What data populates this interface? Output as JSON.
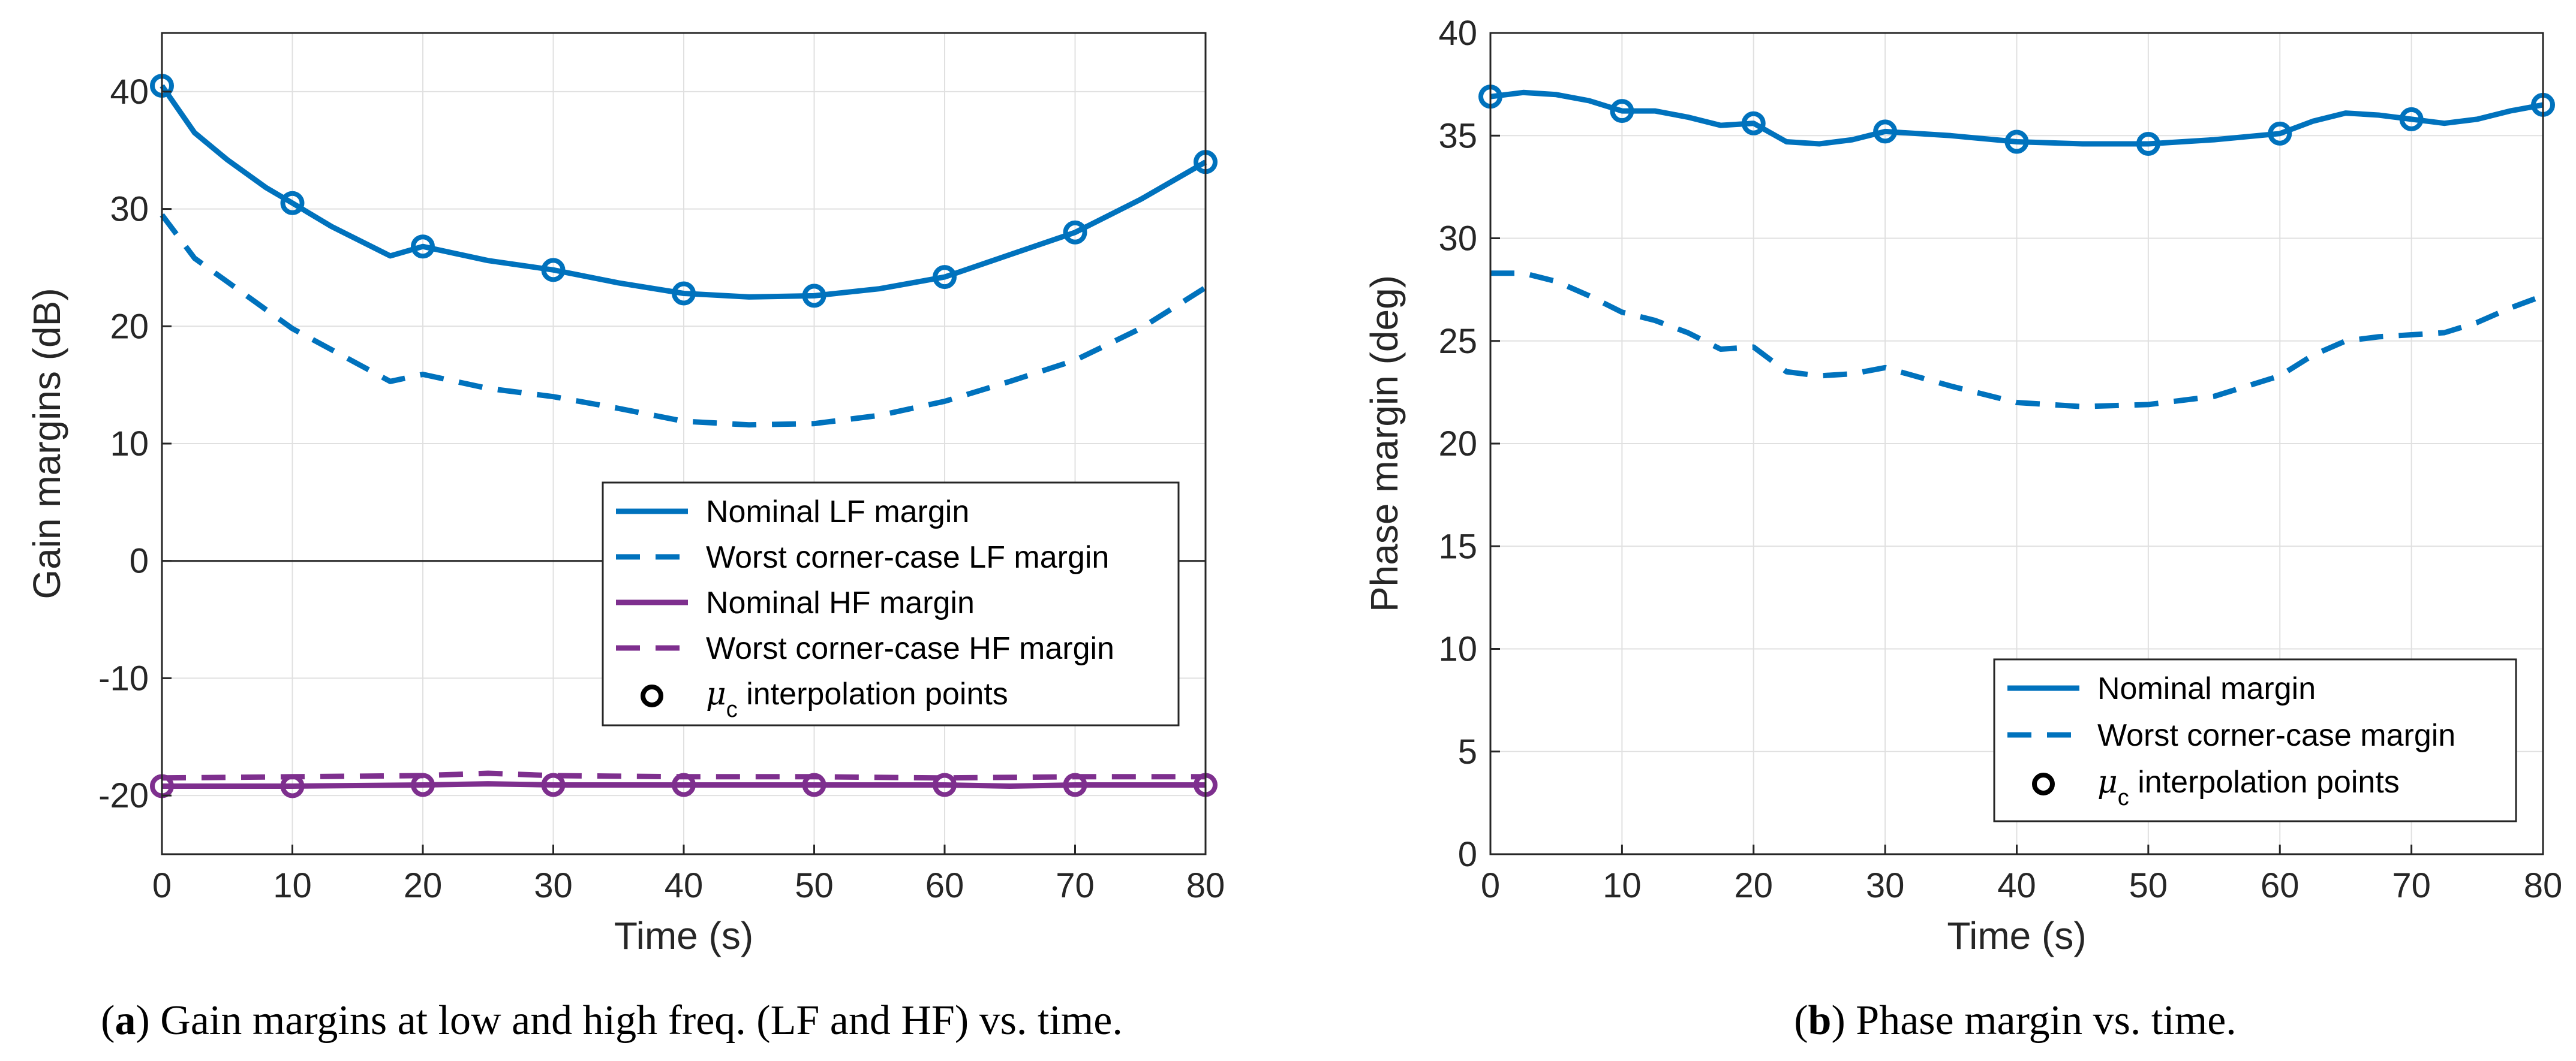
{
  "chart_data": [
    {
      "type": "line",
      "panel": "a",
      "xlabel": "Time (s)",
      "ylabel": "Gain margins (dB)",
      "xlim": [
        0,
        80
      ],
      "ylim": [
        -25,
        45
      ],
      "xticks": [
        0,
        10,
        20,
        30,
        40,
        50,
        60,
        70,
        80
      ],
      "yticks": [
        -20,
        -10,
        0,
        10,
        20,
        30,
        40
      ],
      "grid": true,
      "zero_line": true,
      "legend_position": "center-right",
      "series": [
        {
          "name": "Nominal LF margin",
          "style": "solid",
          "color": "#0072BD",
          "x": [
            0,
            2.5,
            5,
            8,
            10,
            13,
            17.5,
            20,
            25,
            30,
            35,
            40,
            45,
            50,
            55,
            60,
            65,
            70,
            75,
            80
          ],
          "y": [
            40.5,
            36.5,
            34.2,
            31.8,
            30.5,
            28.5,
            26,
            26.8,
            25.6,
            24.8,
            23.7,
            22.8,
            22.5,
            22.6,
            23.2,
            24.2,
            26.1,
            28.0,
            30.8,
            34.0
          ]
        },
        {
          "name": "Worst corner-case LF margin",
          "style": "dashed",
          "color": "#0072BD",
          "x": [
            0,
            2.5,
            5,
            10,
            15,
            17.5,
            20,
            25,
            30,
            35,
            40,
            45,
            50,
            55,
            60,
            65,
            70,
            75,
            80
          ],
          "y": [
            29.5,
            25.8,
            23.8,
            19.8,
            16.8,
            15.3,
            15.9,
            14.7,
            14.0,
            13.0,
            11.9,
            11.6,
            11.7,
            12.4,
            13.6,
            15.3,
            17.1,
            19.8,
            23.3
          ]
        },
        {
          "name": "Nominal HF margin",
          "style": "solid",
          "color": "#7E2F8E",
          "x": [
            0,
            10,
            20,
            25,
            30,
            40,
            50,
            60,
            65,
            70,
            80
          ],
          "y": [
            -19.2,
            -19.2,
            -19.1,
            -19.0,
            -19.1,
            -19.1,
            -19.1,
            -19.1,
            -19.2,
            -19.1,
            -19.1
          ]
        },
        {
          "name": "Worst corner-case HF margin",
          "style": "dashed",
          "color": "#7E2F8E",
          "x": [
            0,
            10,
            20,
            25,
            30,
            40,
            50,
            60,
            70,
            80
          ],
          "y": [
            -18.5,
            -18.4,
            -18.3,
            -18.1,
            -18.3,
            -18.4,
            -18.4,
            -18.5,
            -18.4,
            -18.4
          ]
        }
      ],
      "markers": {
        "name": "μc interpolation points",
        "series": [
          {
            "x": [
              0,
              10,
              20,
              30,
              40,
              50,
              60,
              70,
              80
            ],
            "y": [
              40.5,
              30.5,
              26.8,
              24.8,
              22.8,
              22.6,
              24.2,
              28.0,
              34.0
            ],
            "color": "#0072BD"
          },
          {
            "x": [
              0,
              10,
              20,
              30,
              40,
              50,
              60,
              70,
              80
            ],
            "y": [
              -19.2,
              -19.2,
              -19.1,
              -19.1,
              -19.1,
              -19.1,
              -19.1,
              -19.1,
              -19.1
            ],
            "color": "#7E2F8E"
          }
        ]
      },
      "legend": [
        {
          "label": "Nominal LF margin",
          "kind": "solid",
          "color": "#0072BD"
        },
        {
          "label": "Worst corner-case LF margin",
          "kind": "dashed",
          "color": "#0072BD"
        },
        {
          "label": "Nominal HF margin",
          "kind": "solid",
          "color": "#7E2F8E"
        },
        {
          "label": "Worst corner-case HF margin",
          "kind": "dashed",
          "color": "#7E2F8E"
        },
        {
          "label_prefix": "μ",
          "label_sub": "c",
          "label_suffix": " interpolation points",
          "kind": "marker",
          "color": "#000000"
        }
      ],
      "caption": {
        "letter": "a",
        "text": " Gain margins at low and high freq. (LF and HF) vs. time."
      }
    },
    {
      "type": "line",
      "panel": "b",
      "xlabel": "Time (s)",
      "ylabel": "Phase margin (deg)",
      "xlim": [
        0,
        80
      ],
      "ylim": [
        0,
        40
      ],
      "xticks": [
        0,
        10,
        20,
        30,
        40,
        50,
        60,
        70,
        80
      ],
      "yticks": [
        0,
        5,
        10,
        15,
        20,
        25,
        30,
        35,
        40
      ],
      "grid": true,
      "zero_line": false,
      "legend_position": "bottom-right",
      "series": [
        {
          "name": "Nominal margin",
          "style": "solid",
          "color": "#0072BD",
          "x": [
            0,
            2.5,
            5,
            7.5,
            10,
            12.5,
            15,
            17.5,
            20,
            22.5,
            25,
            27.5,
            30,
            35,
            40,
            45,
            50,
            55,
            60,
            62.5,
            65,
            67.5,
            70,
            72.5,
            75,
            77.5,
            80
          ],
          "y": [
            36.9,
            37.1,
            37.0,
            36.7,
            36.2,
            36.2,
            35.9,
            35.5,
            35.6,
            34.7,
            34.6,
            34.8,
            35.2,
            35.0,
            34.7,
            34.6,
            34.6,
            34.8,
            35.1,
            35.7,
            36.1,
            36.0,
            35.8,
            35.6,
            35.8,
            36.2,
            36.5
          ]
        },
        {
          "name": "Worst corner-case margin",
          "style": "dashed",
          "color": "#0072BD",
          "x": [
            0,
            2.5,
            5,
            7.5,
            10,
            12.5,
            15,
            17.5,
            20,
            22.5,
            25,
            27.5,
            30,
            35,
            40,
            45,
            50,
            55,
            60,
            62.5,
            65,
            67.5,
            70,
            72.5,
            75,
            77.5,
            80
          ],
          "y": [
            28.3,
            28.3,
            27.9,
            27.2,
            26.4,
            26.0,
            25.4,
            24.6,
            24.7,
            23.5,
            23.3,
            23.4,
            23.7,
            22.8,
            22.0,
            21.8,
            21.9,
            22.3,
            23.3,
            24.3,
            25.0,
            25.2,
            25.3,
            25.4,
            25.9,
            26.6,
            27.2
          ]
        }
      ],
      "markers": {
        "name": "μc interpolation points",
        "series": [
          {
            "x": [
              0,
              10,
              20,
              30,
              40,
              50,
              60,
              70,
              80
            ],
            "y": [
              36.9,
              36.2,
              35.6,
              35.2,
              34.7,
              34.6,
              35.1,
              35.8,
              36.5
            ],
            "color": "#0072BD"
          }
        ]
      },
      "legend": [
        {
          "label": "Nominal margin",
          "kind": "solid",
          "color": "#0072BD"
        },
        {
          "label": "Worst corner-case margin",
          "kind": "dashed",
          "color": "#0072BD"
        },
        {
          "label_prefix": "μ",
          "label_sub": "c",
          "label_suffix": " interpolation points",
          "kind": "marker",
          "color": "#000000"
        }
      ],
      "caption": {
        "letter": "b",
        "text": " Phase margin vs. time."
      }
    }
  ]
}
